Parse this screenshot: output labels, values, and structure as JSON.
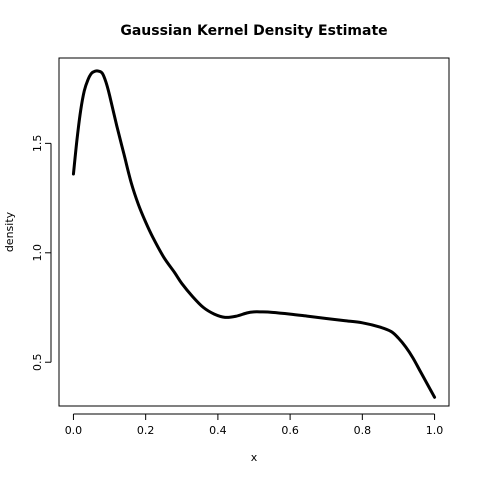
{
  "chart_data": {
    "type": "line",
    "title": "Gaussian Kernel Density Estimate",
    "xlabel": "x",
    "ylabel": "density",
    "xlim": [
      -0.04,
      1.04
    ],
    "ylim": [
      0.3,
      1.89
    ],
    "xticks": [
      0.0,
      0.2,
      0.4,
      0.6,
      0.8,
      1.0
    ],
    "xtick_labels": [
      "0.0",
      "0.2",
      "0.4",
      "0.6",
      "0.8",
      "1.0"
    ],
    "yticks": [
      0.5,
      1.0,
      1.5
    ],
    "ytick_labels": [
      "0.5",
      "1.0",
      "1.5"
    ],
    "grid": false,
    "series": [
      {
        "color": "#000000",
        "x": [
          0.0,
          0.01,
          0.02,
          0.03,
          0.04,
          0.05,
          0.06,
          0.07,
          0.08,
          0.09,
          0.1,
          0.12,
          0.14,
          0.16,
          0.18,
          0.2,
          0.22,
          0.25,
          0.28,
          0.3,
          0.33,
          0.36,
          0.39,
          0.42,
          0.45,
          0.48,
          0.5,
          0.52,
          0.55,
          0.6,
          0.65,
          0.7,
          0.75,
          0.8,
          0.85,
          0.88,
          0.9,
          0.92,
          0.94,
          0.96,
          0.98,
          1.0
        ],
        "y": [
          1.36,
          1.52,
          1.65,
          1.74,
          1.79,
          1.82,
          1.83,
          1.83,
          1.82,
          1.78,
          1.72,
          1.58,
          1.45,
          1.32,
          1.22,
          1.14,
          1.07,
          0.98,
          0.91,
          0.86,
          0.8,
          0.75,
          0.72,
          0.705,
          0.71,
          0.725,
          0.73,
          0.73,
          0.728,
          0.72,
          0.71,
          0.7,
          0.69,
          0.68,
          0.66,
          0.64,
          0.61,
          0.57,
          0.52,
          0.46,
          0.4,
          0.34
        ]
      }
    ]
  }
}
